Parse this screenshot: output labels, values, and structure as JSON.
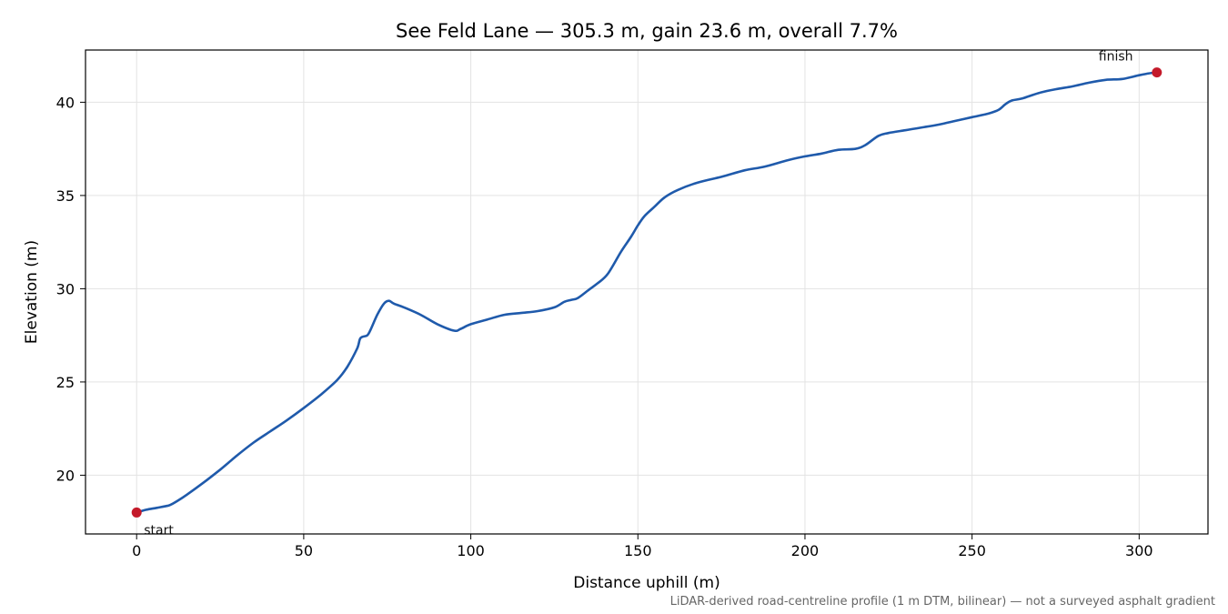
{
  "chart_data": {
    "type": "line",
    "title": "See Feld Lane — 305.3 m, gain 23.6 m, overall 7.7%",
    "xlabel": "Distance uphill (m)",
    "ylabel": "Elevation (m)",
    "footnote": "LiDAR-derived road-centreline profile (1 m DTM, bilinear) — not a surveyed asphalt gradient",
    "xlim": [
      -15.3,
      320.6
    ],
    "ylim": [
      16.85,
      42.8
    ],
    "x_ticks": [
      0,
      50,
      100,
      150,
      200,
      250,
      300
    ],
    "y_ticks": [
      20,
      25,
      30,
      35,
      40
    ],
    "grid": true,
    "colors": {
      "line": "#1f5aab",
      "marker": "#c41a2a"
    },
    "series": [
      {
        "points": [
          [
            0,
            18.0
          ],
          [
            3,
            18.15
          ],
          [
            6,
            18.25
          ],
          [
            9,
            18.35
          ],
          [
            10,
            18.4
          ],
          [
            12,
            18.6
          ],
          [
            15,
            18.95
          ],
          [
            20,
            19.6
          ],
          [
            25,
            20.3
          ],
          [
            30,
            21.05
          ],
          [
            35,
            21.75
          ],
          [
            40,
            22.35
          ],
          [
            45,
            22.95
          ],
          [
            50,
            23.6
          ],
          [
            55,
            24.3
          ],
          [
            60,
            25.1
          ],
          [
            63,
            25.8
          ],
          [
            66,
            26.8
          ],
          [
            67,
            27.35
          ],
          [
            69,
            27.5
          ],
          [
            70,
            27.8
          ],
          [
            72,
            28.6
          ],
          [
            74,
            29.2
          ],
          [
            75.5,
            29.35
          ],
          [
            77,
            29.2
          ],
          [
            80,
            29.0
          ],
          [
            85,
            28.6
          ],
          [
            90,
            28.1
          ],
          [
            95,
            27.75
          ],
          [
            97,
            27.85
          ],
          [
            100,
            28.1
          ],
          [
            105,
            28.35
          ],
          [
            110,
            28.6
          ],
          [
            115,
            28.7
          ],
          [
            120,
            28.8
          ],
          [
            125,
            29.0
          ],
          [
            128,
            29.3
          ],
          [
            130,
            29.4
          ],
          [
            132,
            29.5
          ],
          [
            135,
            29.9
          ],
          [
            138,
            30.3
          ],
          [
            141,
            30.8
          ],
          [
            145,
            32.0
          ],
          [
            148,
            32.8
          ],
          [
            150,
            33.4
          ],
          [
            152,
            33.9
          ],
          [
            155,
            34.4
          ],
          [
            158,
            34.9
          ],
          [
            162,
            35.3
          ],
          [
            168,
            35.7
          ],
          [
            175,
            36.0
          ],
          [
            182,
            36.35
          ],
          [
            188,
            36.55
          ],
          [
            195,
            36.9
          ],
          [
            200,
            37.1
          ],
          [
            205,
            37.25
          ],
          [
            210,
            37.45
          ],
          [
            215,
            37.5
          ],
          [
            218,
            37.7
          ],
          [
            222,
            38.2
          ],
          [
            225,
            38.35
          ],
          [
            230,
            38.5
          ],
          [
            235,
            38.65
          ],
          [
            240,
            38.8
          ],
          [
            245,
            39.0
          ],
          [
            250,
            39.2
          ],
          [
            255,
            39.4
          ],
          [
            258,
            39.6
          ],
          [
            260,
            39.9
          ],
          [
            262,
            40.1
          ],
          [
            265,
            40.2
          ],
          [
            270,
            40.5
          ],
          [
            275,
            40.7
          ],
          [
            280,
            40.85
          ],
          [
            285,
            41.05
          ],
          [
            290,
            41.2
          ],
          [
            295,
            41.25
          ],
          [
            300,
            41.45
          ],
          [
            303,
            41.55
          ],
          [
            305.3,
            41.6
          ]
        ]
      }
    ],
    "markers": [
      {
        "label": "start",
        "x": 0,
        "y": 18.0,
        "label_pos": "below-right"
      },
      {
        "label": "finish",
        "x": 305.3,
        "y": 41.6,
        "label_pos": "above-left"
      }
    ]
  }
}
